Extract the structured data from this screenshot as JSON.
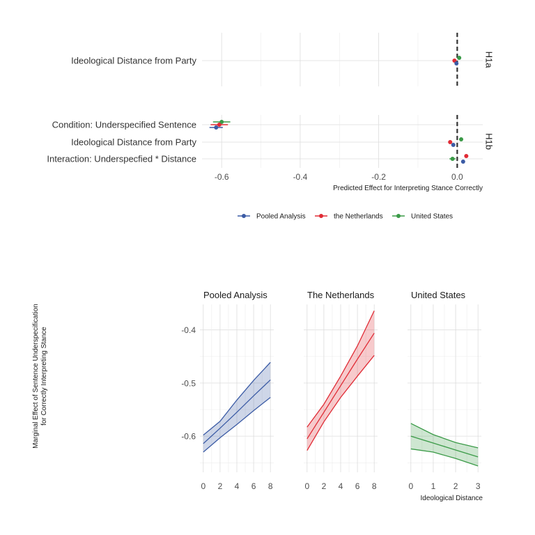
{
  "chart_data": [
    {
      "type": "scatter",
      "subtype": "coefficient-plot",
      "xlabel": "Predicted Effect for Interpreting Stance Correctly",
      "xlim": [
        -0.65,
        0.065
      ],
      "xticks": [
        -0.6,
        -0.4,
        -0.2,
        0.0
      ],
      "xtick_labels": [
        "-0.6",
        "-0.4",
        "-0.2",
        "0.0"
      ],
      "reference_line": 0,
      "legend_position": "bottom",
      "series_colors": {
        "Pooled Analysis": "#3b5ba5",
        "the Netherlands": "#e02b35",
        "United States": "#3a9a47"
      },
      "legend": [
        "Pooled Analysis",
        "the Netherlands",
        "United States"
      ],
      "panels": [
        {
          "strip": "H1a",
          "terms": [
            "Ideological Distance from Party"
          ],
          "estimates": [
            {
              "term": 0,
              "series": "United States",
              "estimate": 0.005,
              "low": 0.001,
              "high": 0.009
            },
            {
              "term": 0,
              "series": "the Netherlands",
              "estimate": -0.007,
              "low": -0.011,
              "high": -0.003
            },
            {
              "term": 0,
              "series": "Pooled Analysis",
              "estimate": -0.002,
              "low": -0.005,
              "high": 0.001
            }
          ]
        },
        {
          "strip": "H1b",
          "terms": [
            "Condition: Underspecified Sentence",
            "Ideological Distance from Party",
            "Interaction: Underspecfied * Distance"
          ],
          "estimates": [
            {
              "term": 0,
              "series": "United States",
              "estimate": -0.6,
              "low": -0.622,
              "high": -0.578
            },
            {
              "term": 0,
              "series": "the Netherlands",
              "estimate": -0.606,
              "low": -0.628,
              "high": -0.584
            },
            {
              "term": 0,
              "series": "Pooled Analysis",
              "estimate": -0.614,
              "low": -0.631,
              "high": -0.597
            },
            {
              "term": 1,
              "series": "United States",
              "estimate": 0.01,
              "low": 0.005,
              "high": 0.015
            },
            {
              "term": 1,
              "series": "the Netherlands",
              "estimate": -0.018,
              "low": -0.023,
              "high": -0.013
            },
            {
              "term": 1,
              "series": "Pooled Analysis",
              "estimate": -0.01,
              "low": -0.014,
              "high": -0.006
            },
            {
              "term": 2,
              "series": "the Netherlands",
              "estimate": 0.023,
              "low": 0.018,
              "high": 0.028
            },
            {
              "term": 2,
              "series": "United States",
              "estimate": -0.012,
              "low": -0.02,
              "high": -0.004
            },
            {
              "term": 2,
              "series": "Pooled Analysis",
              "estimate": 0.015,
              "low": 0.011,
              "high": 0.019
            }
          ]
        }
      ]
    },
    {
      "type": "line",
      "subtype": "marginal-effect-with-ribbon",
      "ylabel": "Marginal Effect of Sentence Underspecification\nfor Correctly Interpreting Stance",
      "xlabel": "Ideological Distance",
      "ylim": [
        -0.668,
        -0.352
      ],
      "yticks": [
        -0.6,
        -0.5,
        -0.4
      ],
      "ytick_labels": [
        "-0.6",
        "-0.5",
        "-0.4"
      ],
      "panels": [
        {
          "title": "Pooled Analysis",
          "color": "#3b5ba5",
          "xlim": [
            -0.4,
            8.4
          ],
          "xticks": [
            0,
            2,
            4,
            6,
            8
          ],
          "x": [
            0,
            2,
            4,
            6,
            8
          ],
          "estimate": [
            -0.614,
            -0.585,
            -0.555,
            -0.524,
            -0.494
          ],
          "lower": [
            -0.63,
            -0.603,
            -0.578,
            -0.552,
            -0.527
          ],
          "upper": [
            -0.598,
            -0.572,
            -0.532,
            -0.495,
            -0.461
          ]
        },
        {
          "title": "The Netherlands",
          "color": "#e02b35",
          "xlim": [
            -0.4,
            8.4
          ],
          "xticks": [
            0,
            2,
            4,
            6,
            8
          ],
          "x": [
            0,
            2,
            4,
            6,
            8
          ],
          "estimate": [
            -0.605,
            -0.555,
            -0.505,
            -0.455,
            -0.406
          ],
          "lower": [
            -0.627,
            -0.573,
            -0.527,
            -0.487,
            -0.448
          ],
          "upper": [
            -0.583,
            -0.54,
            -0.487,
            -0.43,
            -0.364
          ]
        },
        {
          "title": "United States",
          "color": "#3a9a47",
          "xlim": [
            -0.15,
            3.15
          ],
          "xticks": [
            0,
            1,
            2,
            3
          ],
          "x": [
            0,
            1,
            2,
            3
          ],
          "estimate": [
            -0.6,
            -0.613,
            -0.626,
            -0.639
          ],
          "lower": [
            -0.624,
            -0.63,
            -0.642,
            -0.656
          ],
          "upper": [
            -0.576,
            -0.597,
            -0.612,
            -0.622
          ]
        }
      ]
    }
  ]
}
